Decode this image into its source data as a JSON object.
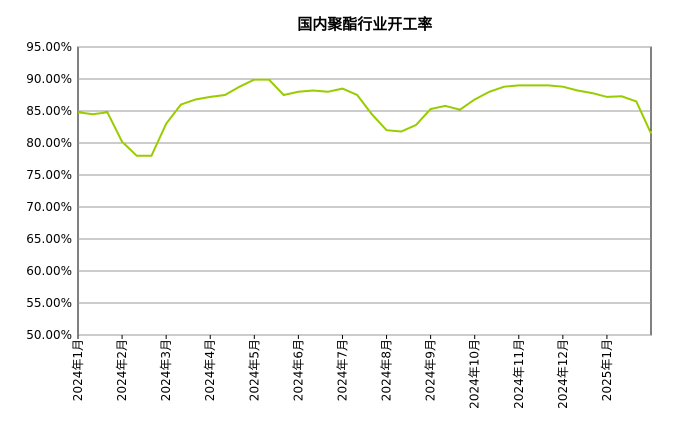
{
  "chart_data": {
    "type": "line",
    "title": "国内聚酯行业开工率",
    "categories": [
      "2024年1月",
      null,
      null,
      "2024年2月",
      null,
      null,
      "2024年3月",
      null,
      null,
      "2024年4月",
      null,
      null,
      "2024年5月",
      null,
      null,
      "2024年6月",
      null,
      null,
      "2024年7月",
      null,
      null,
      "2024年8月",
      null,
      null,
      "2024年9月",
      null,
      null,
      "2024年10月",
      null,
      null,
      "2024年11月",
      null,
      null,
      "2024年12月",
      null,
      null,
      "2025年1月",
      null,
      null,
      null
    ],
    "series": [
      {
        "color": "#99cc00",
        "values": [
          84.8,
          84.5,
          84.8,
          80.2,
          78,
          78,
          83,
          86,
          86.8,
          87.2,
          87.5,
          88.8,
          89.9,
          89.9,
          87.5,
          88,
          88.2,
          88,
          88.5,
          87.5,
          84.5,
          82,
          81.8,
          82.8,
          85.3,
          85.8,
          85.2,
          86.8,
          88,
          88.8,
          89,
          89,
          89,
          88.8,
          88.2,
          87.8,
          87.2,
          87.3,
          86.5,
          81.5
        ]
      }
    ],
    "ylim": [
      50,
      95
    ],
    "yticks": [
      {
        "value": 50,
        "label": "50.00%"
      },
      {
        "value": 55,
        "label": "55.00%"
      },
      {
        "value": 60,
        "label": "60.00%"
      },
      {
        "value": 65,
        "label": "65.00%"
      },
      {
        "value": 70,
        "label": "70.00%"
      },
      {
        "value": 75,
        "label": "75.00%"
      },
      {
        "value": 80,
        "label": "80.00%"
      },
      {
        "value": 85,
        "label": "85.00%"
      },
      {
        "value": 90,
        "label": "90.00%"
      },
      {
        "value": 95,
        "label": "95.00%"
      }
    ],
    "grid": true
  }
}
